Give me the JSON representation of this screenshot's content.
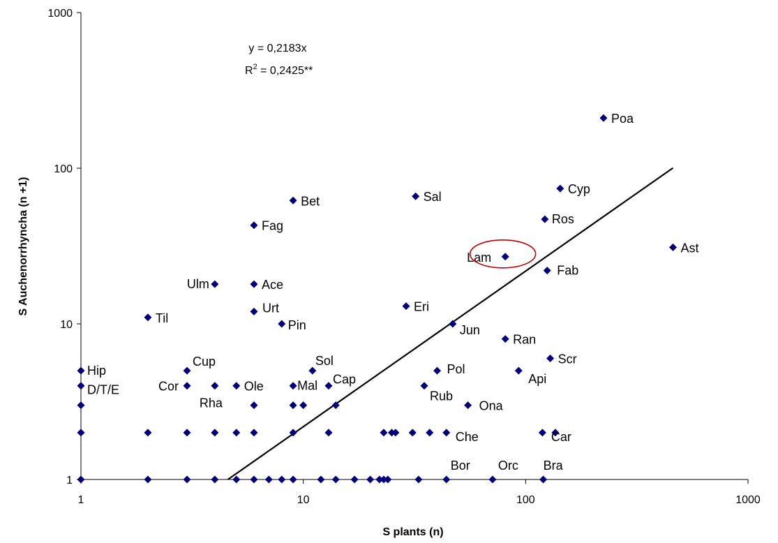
{
  "chart_data": {
    "type": "scatter",
    "xlabel": "S plants (n)",
    "ylabel": "S Auchenorrhyncha (n +1)",
    "xscale": "log",
    "yscale": "log",
    "xlim": [
      1,
      1000
    ],
    "ylim": [
      1,
      1000
    ],
    "xticks": [
      "1",
      "10",
      "100",
      "1000"
    ],
    "yticks": [
      "1",
      "10",
      "100",
      "1000"
    ],
    "grid": false,
    "legend": "none",
    "equation": "y = 0,2183x",
    "r2_prefix": "R",
    "r2_sup": "2",
    "r2_value": " = 0,2425**",
    "fit": {
      "slope": 0.2183,
      "x_range": [
        4.58,
        460
      ]
    },
    "marker_color": "#00007f",
    "highlight_color": "#c00000",
    "highlight_label": "Lam",
    "labeled_points": [
      {
        "label": "Poa",
        "x": 224,
        "y": 210
      },
      {
        "label": "Cyp",
        "x": 143,
        "y": 74
      },
      {
        "label": "Ros",
        "x": 122,
        "y": 47
      },
      {
        "label": "Ast",
        "x": 460,
        "y": 31
      },
      {
        "label": "Lam",
        "x": 81,
        "y": 27
      },
      {
        "label": "Fab",
        "x": 125,
        "y": 22
      },
      {
        "label": "Sal",
        "x": 32,
        "y": 66
      },
      {
        "label": "Bet",
        "x": 9,
        "y": 62
      },
      {
        "label": "Fag",
        "x": 6,
        "y": 43
      },
      {
        "label": "Ulm",
        "x": 4,
        "y": 18
      },
      {
        "label": "Ace",
        "x": 6,
        "y": 18
      },
      {
        "label": "Urt",
        "x": 6,
        "y": 12
      },
      {
        "label": "Til",
        "x": 2,
        "y": 11
      },
      {
        "label": "Pin",
        "x": 8,
        "y": 10
      },
      {
        "label": "Eri",
        "x": 29,
        "y": 13
      },
      {
        "label": "Jun",
        "x": 47,
        "y": 10
      },
      {
        "label": "Ran",
        "x": 81,
        "y": 8
      },
      {
        "label": "Scr",
        "x": 129,
        "y": 6
      },
      {
        "label": "Api",
        "x": 93,
        "y": 5
      },
      {
        "label": "Pol",
        "x": 40,
        "y": 5
      },
      {
        "label": "Rub",
        "x": 35,
        "y": 4
      },
      {
        "label": "Ona",
        "x": 55,
        "y": 3
      },
      {
        "label": "Sol",
        "x": 11,
        "y": 5
      },
      {
        "label": "Cap",
        "x": 13,
        "y": 4
      },
      {
        "label": "Mal",
        "x": 9,
        "y": 4
      },
      {
        "label": "Ole",
        "x": 5,
        "y": 4
      },
      {
        "label": "Rha",
        "x": 4,
        "y": 4
      },
      {
        "label": "Cup",
        "x": 3,
        "y": 5
      },
      {
        "label": "Cor",
        "x": 3,
        "y": 4
      },
      {
        "label": "Hip",
        "x": 1,
        "y": 5
      },
      {
        "label": "D/T/E",
        "x": 1,
        "y": 4
      },
      {
        "label": "Che",
        "x": 44,
        "y": 2
      },
      {
        "label": "Car",
        "x": 136,
        "y": 2
      },
      {
        "label": "Bor",
        "x": 44,
        "y": 1
      },
      {
        "label": "Orc",
        "x": 71,
        "y": 1
      },
      {
        "label": "Bra",
        "x": 120,
        "y": 1
      }
    ],
    "other_points": [
      {
        "x": 1,
        "y": 3
      },
      {
        "x": 1,
        "y": 2
      },
      {
        "x": 1,
        "y": 1
      },
      {
        "x": 2,
        "y": 2
      },
      {
        "x": 2,
        "y": 1
      },
      {
        "x": 3,
        "y": 2
      },
      {
        "x": 3,
        "y": 1
      },
      {
        "x": 4,
        "y": 2
      },
      {
        "x": 4,
        "y": 1
      },
      {
        "x": 5,
        "y": 2
      },
      {
        "x": 5,
        "y": 1
      },
      {
        "x": 6,
        "y": 3
      },
      {
        "x": 6,
        "y": 2
      },
      {
        "x": 6,
        "y": 1
      },
      {
        "x": 7,
        "y": 1
      },
      {
        "x": 8,
        "y": 1
      },
      {
        "x": 9,
        "y": 3
      },
      {
        "x": 9,
        "y": 2
      },
      {
        "x": 9,
        "y": 1
      },
      {
        "x": 10,
        "y": 3
      },
      {
        "x": 12,
        "y": 1
      },
      {
        "x": 13,
        "y": 2
      },
      {
        "x": 14,
        "y": 3
      },
      {
        "x": 14,
        "y": 1
      },
      {
        "x": 17,
        "y": 1
      },
      {
        "x": 20,
        "y": 1
      },
      {
        "x": 22,
        "y": 1
      },
      {
        "x": 23,
        "y": 2
      },
      {
        "x": 23,
        "y": 1
      },
      {
        "x": 24,
        "y": 1
      },
      {
        "x": 25,
        "y": 2
      },
      {
        "x": 26,
        "y": 2
      },
      {
        "x": 31,
        "y": 2
      },
      {
        "x": 33,
        "y": 1
      },
      {
        "x": 37,
        "y": 2
      },
      {
        "x": 119,
        "y": 2
      }
    ]
  }
}
